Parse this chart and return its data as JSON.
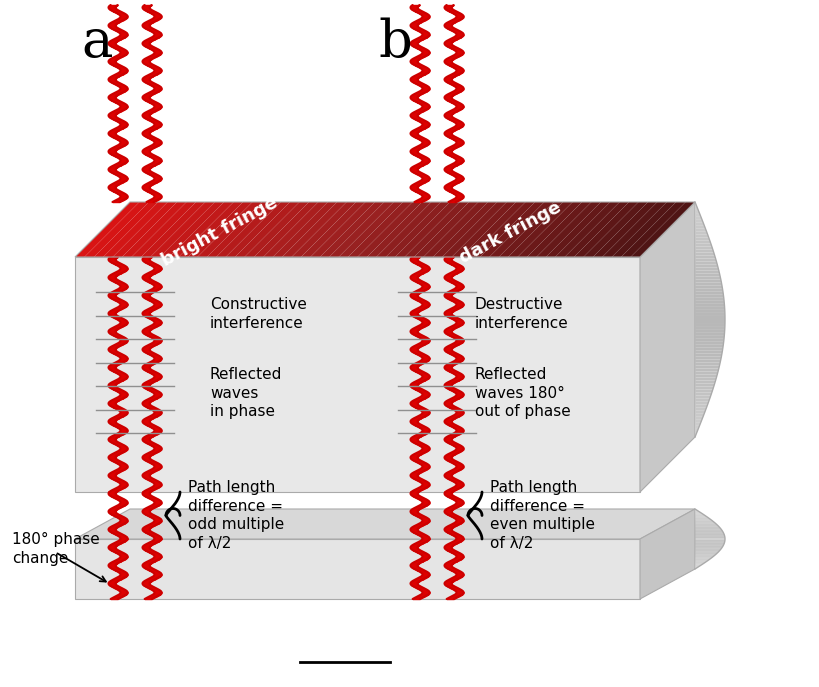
{
  "bg_color": "#ffffff",
  "box_face_color": "#e8e8e8",
  "box_top_side_color": "#d0d0d0",
  "box_right_side_color": "#c0c0c0",
  "wave_color": "#cc0000",
  "wave_fill_color": "#dd0000",
  "line_color": "#888888",
  "label_a": "a",
  "label_b": "b",
  "bright_fringe": "bright fringe",
  "dark_fringe": "dark fringe",
  "constructive": "Constructive\ninterference",
  "destructive": "Destructive\ninterference",
  "reflected_a": "Reflected\nwaves\nin phase",
  "reflected_b": "Reflected\nwaves 180°\nout of phase",
  "path_a": "Path length\ndifference =\nodd multiple\nof λ/2",
  "path_b": "Path length\ndifference =\neven multiple\nof λ/2",
  "phase_change": "180° phase\nchange",
  "wave_amp": 6,
  "wave_wl": 18,
  "label_fontsize": 38,
  "text_fontsize": 11,
  "fringe_fontsize": 13
}
